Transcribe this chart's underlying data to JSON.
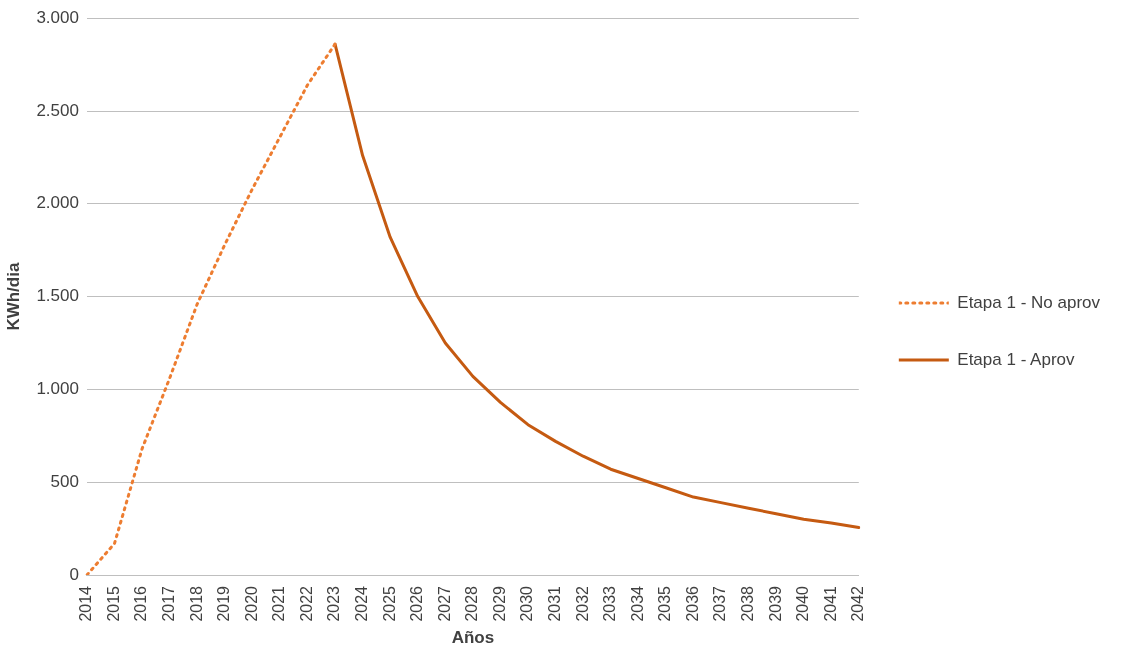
{
  "chart_data": {
    "type": "line",
    "xlabel": "Años",
    "ylabel": "KWh/dia",
    "categories": [
      "2014",
      "2015",
      "2016",
      "2017",
      "2018",
      "2019",
      "2020",
      "2021",
      "2022",
      "2023",
      "2024",
      "2025",
      "2026",
      "2027",
      "2028",
      "2029",
      "2030",
      "2031",
      "2032",
      "2033",
      "2034",
      "2035",
      "2036",
      "2037",
      "2038",
      "2039",
      "2040",
      "2041",
      "2042"
    ],
    "series": [
      {
        "name": "Etapa 1 - No aprov",
        "color": "#ed7d31",
        "line_style": "dotted",
        "values": [
          0,
          170,
          680,
          1060,
          1460,
          1780,
          2080,
          2360,
          2640,
          2860,
          null,
          null,
          null,
          null,
          null,
          null,
          null,
          null,
          null,
          null,
          null,
          null,
          null,
          null,
          null,
          null,
          null,
          null,
          null
        ]
      },
      {
        "name": "Etapa 1 - Aprov",
        "color": "#c55a11",
        "line_style": "solid",
        "values": [
          null,
          null,
          null,
          null,
          null,
          null,
          null,
          null,
          null,
          2860,
          2260,
          1820,
          1500,
          1250,
          1070,
          930,
          810,
          720,
          640,
          570,
          520,
          470,
          420,
          390,
          360,
          330,
          300,
          280,
          256
        ]
      }
    ],
    "ylim": [
      0,
      3000
    ],
    "yticks": [
      {
        "value": 0,
        "label": "0"
      },
      {
        "value": 500,
        "label": "500"
      },
      {
        "value": 1000,
        "label": "1.000"
      },
      {
        "value": 1500,
        "label": "1.500"
      },
      {
        "value": 2000,
        "label": "2.000"
      },
      {
        "value": 2500,
        "label": "2.500"
      },
      {
        "value": 3000,
        "label": "3.000"
      }
    ],
    "grid": "y",
    "legend": "right",
    "marker": "none"
  }
}
